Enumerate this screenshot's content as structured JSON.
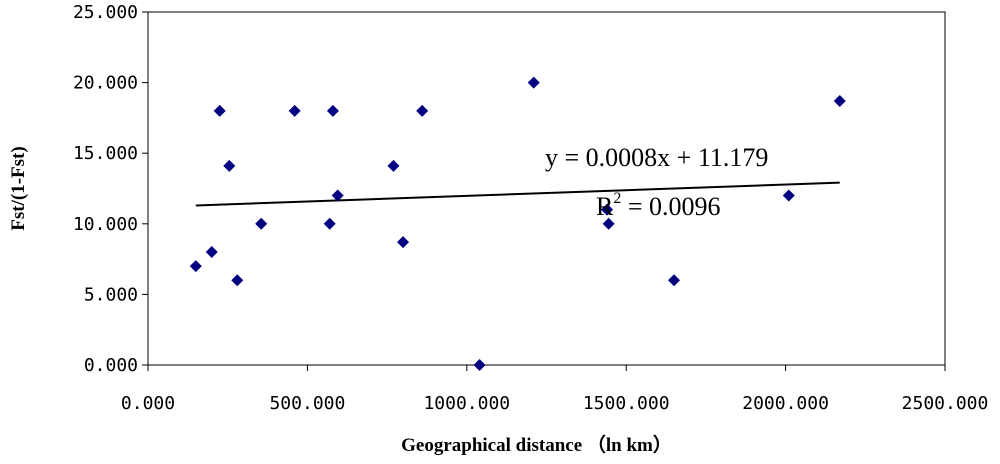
{
  "chart_data": {
    "type": "scatter",
    "title": "",
    "xlabel": "Geographical distance （ln km）",
    "ylabel": "Fst/(1-Fst)",
    "xlim": [
      0,
      2500
    ],
    "ylim": [
      0,
      25
    ],
    "x_ticks": [
      "0.000",
      "500.000",
      "1000.000",
      "1500.000",
      "2000.000",
      "2500.000"
    ],
    "y_ticks": [
      "0.000",
      "5.000",
      "10.000",
      "15.000",
      "20.000",
      "25.000"
    ],
    "grid": false,
    "legend": "none",
    "marker_color": "#000080",
    "points": [
      {
        "x": 150,
        "y": 7.0
      },
      {
        "x": 200,
        "y": 8.0
      },
      {
        "x": 225,
        "y": 18.0
      },
      {
        "x": 255,
        "y": 14.1
      },
      {
        "x": 280,
        "y": 6.0
      },
      {
        "x": 355,
        "y": 10.0
      },
      {
        "x": 460,
        "y": 18.0
      },
      {
        "x": 570,
        "y": 10.0
      },
      {
        "x": 580,
        "y": 18.0
      },
      {
        "x": 595,
        "y": 12.0
      },
      {
        "x": 770,
        "y": 14.1
      },
      {
        "x": 800,
        "y": 8.7
      },
      {
        "x": 860,
        "y": 18.0
      },
      {
        "x": 1040,
        "y": 0.0
      },
      {
        "x": 1210,
        "y": 20.0
      },
      {
        "x": 1440,
        "y": 11.0
      },
      {
        "x": 1445,
        "y": 10.0
      },
      {
        "x": 1650,
        "y": 6.0
      },
      {
        "x": 2010,
        "y": 12.0
      },
      {
        "x": 2170,
        "y": 18.7
      }
    ],
    "trendline": {
      "slope": 0.0008,
      "intercept": 11.179,
      "x_range": [
        150,
        2170
      ],
      "equation": "y = 0.0008x + 11.179",
      "r2_prefix": "R",
      "r2_sup": "2",
      "r2_suffix": " = 0.0096"
    }
  }
}
